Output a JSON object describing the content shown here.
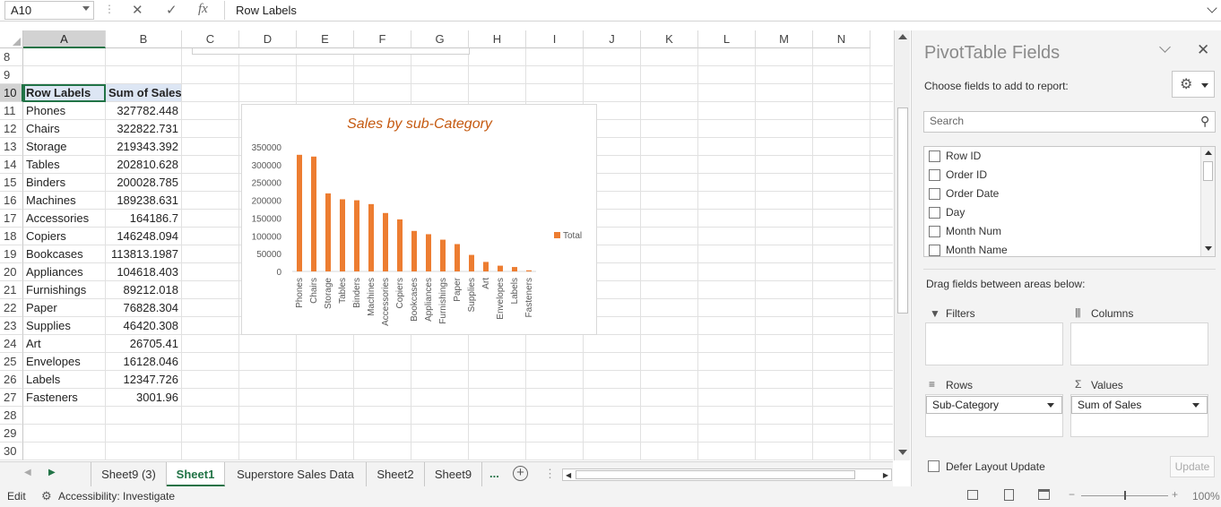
{
  "formula_bar": {
    "name_box": "A10",
    "formula": "Row Labels"
  },
  "columns": [
    "A",
    "B",
    "C",
    "D",
    "E",
    "F",
    "G",
    "H",
    "I",
    "J",
    "K",
    "L",
    "M",
    "N"
  ],
  "rows": [
    {
      "n": "8",
      "a": "",
      "b": ""
    },
    {
      "n": "9",
      "a": "",
      "b": ""
    },
    {
      "n": "10",
      "a": "Row Labels",
      "b": "Sum of Sales"
    },
    {
      "n": "11",
      "a": "Phones",
      "b": "327782.448"
    },
    {
      "n": "12",
      "a": "Chairs",
      "b": "322822.731"
    },
    {
      "n": "13",
      "a": "Storage",
      "b": "219343.392"
    },
    {
      "n": "14",
      "a": "Tables",
      "b": "202810.628"
    },
    {
      "n": "15",
      "a": "Binders",
      "b": "200028.785"
    },
    {
      "n": "16",
      "a": "Machines",
      "b": "189238.631"
    },
    {
      "n": "17",
      "a": "Accessories",
      "b": "164186.7"
    },
    {
      "n": "18",
      "a": "Copiers",
      "b": "146248.094"
    },
    {
      "n": "19",
      "a": "Bookcases",
      "b": "113813.1987"
    },
    {
      "n": "20",
      "a": "Appliances",
      "b": "104618.403"
    },
    {
      "n": "21",
      "a": "Furnishings",
      "b": "89212.018"
    },
    {
      "n": "22",
      "a": "Paper",
      "b": "76828.304"
    },
    {
      "n": "23",
      "a": "Supplies",
      "b": "46420.308"
    },
    {
      "n": "24",
      "a": "Art",
      "b": "26705.41"
    },
    {
      "n": "25",
      "a": "Envelopes",
      "b": "16128.046"
    },
    {
      "n": "26",
      "a": "Labels",
      "b": "12347.726"
    },
    {
      "n": "27",
      "a": "Fasteners",
      "b": "3001.96"
    },
    {
      "n": "28",
      "a": "",
      "b": ""
    },
    {
      "n": "29",
      "a": "",
      "b": ""
    },
    {
      "n": "30",
      "a": "",
      "b": ""
    }
  ],
  "chart_data": {
    "type": "bar",
    "title": "Sales by sub-Category",
    "categories": [
      "Phones",
      "Chairs",
      "Storage",
      "Tables",
      "Binders",
      "Machines",
      "Accessories",
      "Copiers",
      "Bookcases",
      "Appliances",
      "Furnishings",
      "Paper",
      "Supplies",
      "Art",
      "Envelopes",
      "Labels",
      "Fasteners"
    ],
    "series": [
      {
        "name": "Total",
        "values": [
          327782.448,
          322822.731,
          219343.392,
          202810.628,
          200028.785,
          189238.631,
          164186.7,
          146248.094,
          113813.1987,
          104618.403,
          89212.018,
          76828.304,
          46420.308,
          26705.41,
          16128.046,
          12347.726,
          3001.96
        ]
      }
    ],
    "yticks": [
      "350000",
      "300000",
      "250000",
      "200000",
      "150000",
      "100000",
      "50000",
      "0"
    ],
    "ylim": [
      0,
      350000
    ],
    "legend": "right",
    "color": "#ed7d31",
    "title_color": "#c55a11"
  },
  "sheet_tabs": {
    "tabs": [
      "Sheet9 (3)",
      "Sheet1",
      "Superstore Sales Data",
      "Sheet2",
      "Sheet9"
    ],
    "active": "Sheet1",
    "more": "...",
    "add_icon": "plus-circle-icon"
  },
  "status_bar": {
    "mode": "Edit",
    "accessibility": "Accessibility: Investigate",
    "zoom": "100%"
  },
  "pivot_panel": {
    "title": "PivotTable Fields",
    "choose_label": "Choose fields to add to report:",
    "search_placeholder": "Search",
    "fields": [
      "Row ID",
      "Order ID",
      "Order Date",
      "Day",
      "Month Num",
      "Month Name"
    ],
    "drag_label": "Drag fields between areas below:",
    "areas": {
      "filters": "Filters",
      "columns": "Columns",
      "rows": "Rows",
      "values": "Values"
    },
    "rows_field": "Sub-Category",
    "values_field": "Sum of Sales",
    "defer_label": "Defer Layout Update",
    "update_label": "Update"
  }
}
